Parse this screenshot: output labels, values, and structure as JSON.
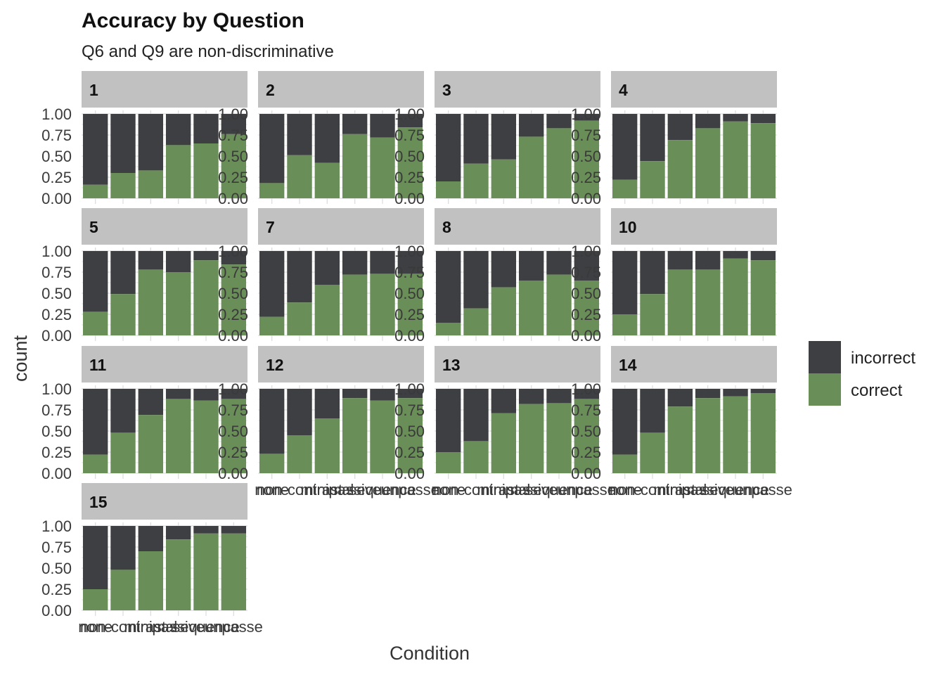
{
  "chart_data": {
    "type": "bar",
    "stacked": "fill",
    "title": "Accuracy by Question",
    "subtitle": "Q6 and Q9 are non-discriminative",
    "xlabel": "Condition",
    "ylabel": "count",
    "ylim": [
      0,
      1
    ],
    "yticks": [
      "1.00",
      "0.75",
      "0.50",
      "0.25",
      "0.00"
    ],
    "grid": true,
    "legend_position": "right",
    "categories": [
      "none",
      "non-contrast",
      "minimal",
      "passive",
      "sequence",
      "unpasse"
    ],
    "series_names": [
      "incorrect",
      "correct"
    ],
    "colors": {
      "incorrect": "#3e3f42",
      "correct": "#6a8e58",
      "strip": "#c1c1c1",
      "grid": "#dedede"
    },
    "facets": [
      {
        "label": "1",
        "correct": [
          0.16,
          0.3,
          0.33,
          0.63,
          0.65,
          0.76
        ]
      },
      {
        "label": "2",
        "correct": [
          0.18,
          0.51,
          0.42,
          0.76,
          0.72,
          0.84
        ]
      },
      {
        "label": "3",
        "correct": [
          0.2,
          0.41,
          0.46,
          0.73,
          0.83,
          0.92
        ]
      },
      {
        "label": "4",
        "correct": [
          0.22,
          0.44,
          0.69,
          0.83,
          0.91,
          0.89
        ]
      },
      {
        "label": "5",
        "correct": [
          0.28,
          0.49,
          0.78,
          0.75,
          0.89,
          0.84
        ]
      },
      {
        "label": "7",
        "correct": [
          0.22,
          0.39,
          0.6,
          0.72,
          0.73,
          0.73
        ]
      },
      {
        "label": "8",
        "correct": [
          0.15,
          0.32,
          0.57,
          0.65,
          0.72,
          0.65
        ]
      },
      {
        "label": "10",
        "correct": [
          0.25,
          0.49,
          0.78,
          0.78,
          0.91,
          0.89
        ]
      },
      {
        "label": "11",
        "correct": [
          0.22,
          0.48,
          0.69,
          0.88,
          0.86,
          0.88
        ]
      },
      {
        "label": "12",
        "correct": [
          0.23,
          0.45,
          0.65,
          0.89,
          0.86,
          0.89
        ]
      },
      {
        "label": "13",
        "correct": [
          0.25,
          0.38,
          0.71,
          0.82,
          0.83,
          0.88
        ]
      },
      {
        "label": "14",
        "correct": [
          0.22,
          0.48,
          0.79,
          0.89,
          0.91,
          0.95
        ]
      },
      {
        "label": "15",
        "correct": [
          0.25,
          0.48,
          0.7,
          0.84,
          0.91,
          0.91
        ]
      }
    ]
  }
}
